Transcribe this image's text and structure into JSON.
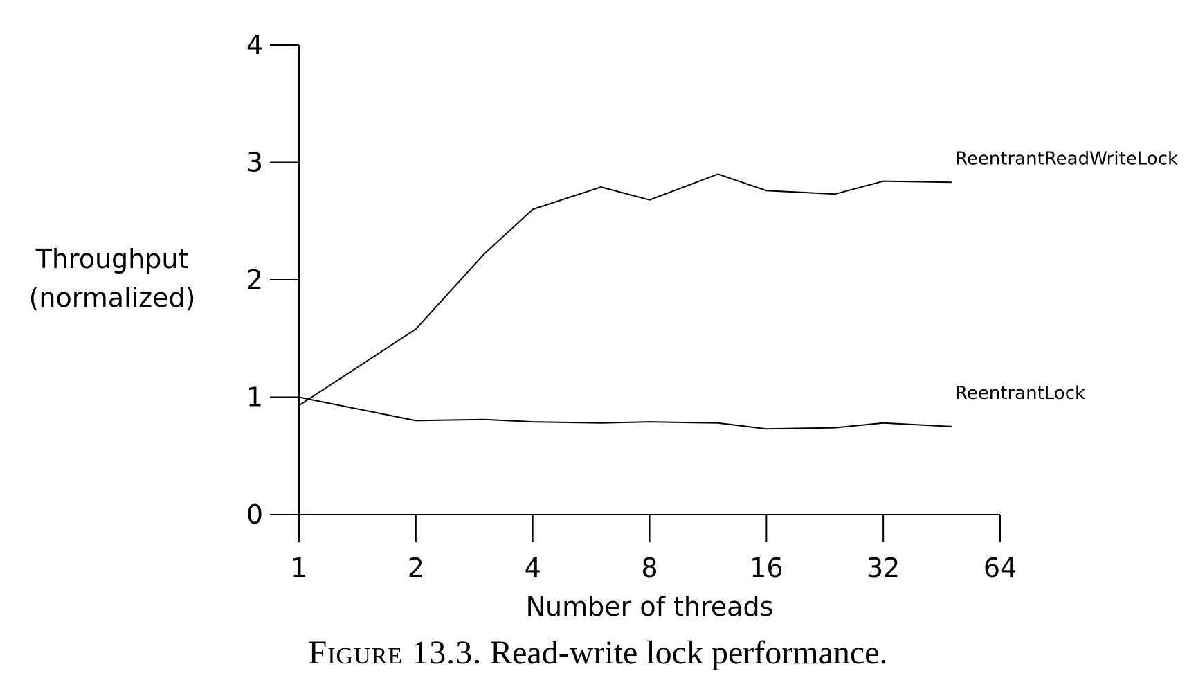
{
  "chart_data": {
    "type": "line",
    "xlabel": "Number of threads",
    "ylabel": [
      "Throughput",
      "(normalized)"
    ],
    "x_scale": "log2",
    "xlim": [
      1,
      64
    ],
    "ylim": [
      0,
      4
    ],
    "x_ticks": [
      1,
      2,
      4,
      8,
      16,
      32,
      64
    ],
    "x_tick_labels": [
      "1",
      "2",
      "4",
      "8",
      "16",
      "32",
      "64"
    ],
    "y_ticks": [
      0,
      1,
      2,
      3,
      4
    ],
    "y_tick_labels": [
      "0",
      "1",
      "2",
      "3",
      "4"
    ],
    "grid": false,
    "legend": "direct labels at right end of lines",
    "series": [
      {
        "name": "ReentrantReadWriteLock",
        "x": [
          1,
          2,
          3,
          4,
          6,
          8,
          12,
          16,
          24,
          32,
          48
        ],
        "y": [
          0.93,
          1.58,
          2.22,
          2.6,
          2.79,
          2.68,
          2.9,
          2.76,
          2.73,
          2.84,
          2.83
        ]
      },
      {
        "name": "ReentrantLock",
        "x": [
          1,
          2,
          3,
          4,
          6,
          8,
          12,
          16,
          24,
          32,
          48
        ],
        "y": [
          1.0,
          0.8,
          0.81,
          0.79,
          0.78,
          0.79,
          0.78,
          0.73,
          0.74,
          0.78,
          0.75
        ]
      }
    ]
  },
  "caption": {
    "figure": "Figure 13.3.",
    "text": " Read-write lock performance."
  }
}
